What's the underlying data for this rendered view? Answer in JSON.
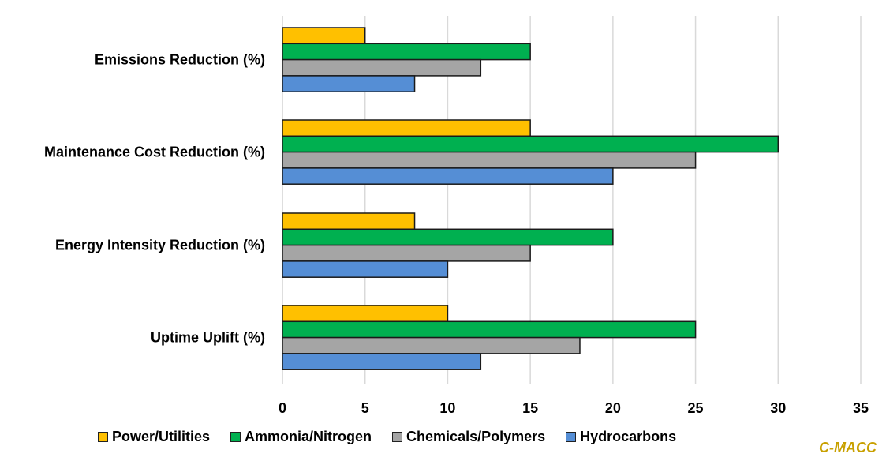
{
  "chart_data": {
    "type": "bar",
    "orientation": "horizontal",
    "title": "",
    "xlabel": "",
    "ylabel": "",
    "xlim": [
      0,
      35
    ],
    "x_ticks": [
      0,
      5,
      10,
      15,
      20,
      25,
      30,
      35
    ],
    "x_tick_labels": [
      "0",
      "5",
      "10",
      "15",
      "20",
      "25",
      "30",
      "35"
    ],
    "grid": true,
    "legend_position": "bottom",
    "categories": [
      "Emissions Reduction (%)",
      "Maintenance Cost Reduction (%)",
      "Energy Intensity Reduction (%)",
      "Uptime Uplift (%)"
    ],
    "series": [
      {
        "name": "Power/Utilities",
        "color": "#ffc000",
        "values": [
          5,
          15,
          8,
          10
        ]
      },
      {
        "name": "Ammonia/Nitrogen",
        "color": "#00b050",
        "values": [
          15,
          30,
          20,
          25
        ]
      },
      {
        "name": "Chemicals/Polymers",
        "color": "#a5a5a5",
        "values": [
          12,
          25,
          15,
          18
        ]
      },
      {
        "name": "Hydrocarbons",
        "color": "#558ed5",
        "values": [
          8,
          20,
          10,
          12
        ]
      }
    ]
  },
  "branding": {
    "text": "C-MACC",
    "color": "#c8a000"
  }
}
